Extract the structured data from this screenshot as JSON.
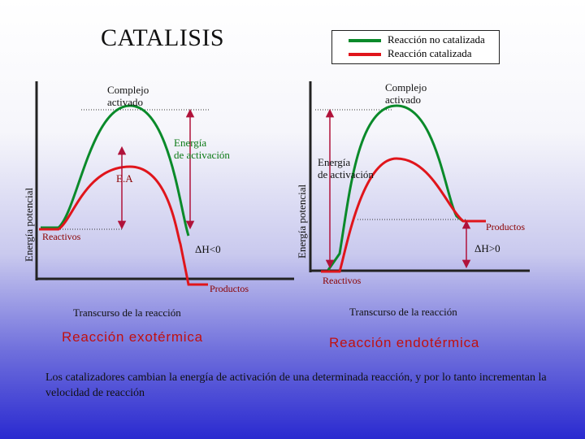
{
  "title": "CATALISIS",
  "legend": {
    "uncatalyzed": {
      "label": "Reacción no catalizada",
      "color": "#0a8a2a"
    },
    "catalyzed": {
      "label": "Reacción  catalizada",
      "color": "#e0151b"
    }
  },
  "left": {
    "complex_label_1": "Complejo",
    "complex_label_2": "activado",
    "activation_label_1": "Energía",
    "activation_label_2": "de activación",
    "ea_label": "E.A",
    "reactants_label": "Reactivos",
    "enthalpy_label": "ΔH<0",
    "products_label": "Productos",
    "y_axis_label": "Energía potencial",
    "x_axis_label": "Transcurso de la reacción",
    "caption": "Reacción exotérmica"
  },
  "right": {
    "complex_label_1": "Complejo",
    "complex_label_2": "activado",
    "activation_label_1": "Energía",
    "activation_label_2": "de activación",
    "products_label": "Productos",
    "enthalpy_label": "ΔH>0",
    "reactants_label": "Reactivos",
    "y_axis_label": "Energía potencial",
    "x_axis_label": "Transcurso de la reacción",
    "caption": "Reacción endotérmica"
  },
  "footer": "Los catalizadores cambian la energía de activación de una determinada reacción, y por lo tanto incrementan la velocidad de reacción",
  "colors": {
    "green": "#0a8a2a",
    "red": "#e0151b",
    "arrow": "#b0123a",
    "axis": "#222222"
  }
}
